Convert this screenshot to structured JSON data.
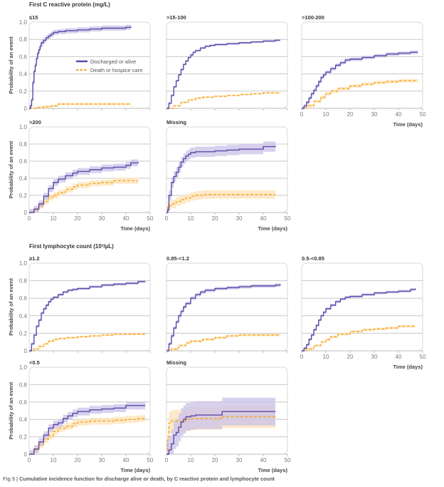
{
  "figure": {
    "caption_label": "Fig 5 | ",
    "caption_text": "Cumulative incidence function for discharge alive or death, by C reactive protein and lymphocyte count",
    "sections": [
      {
        "title": "First C reactive protein (mg/L)"
      },
      {
        "title": "First lymphocyte count (10³/µL)"
      }
    ]
  },
  "colors": {
    "discharged": "#5b4aa8",
    "discharged_band": "#c9c1e8",
    "death": "#f5a623",
    "death_band": "#fde3b8",
    "grid": "#c8c8c8",
    "frame": "#d8d8d8"
  },
  "chart_data": [
    {
      "type": "line",
      "section": 0,
      "title": "≤15",
      "xlabel": "Time (days)",
      "ylabel": "Probability of an event",
      "xlim": [
        0,
        50
      ],
      "ylim": [
        0,
        1.0
      ],
      "xticks": [
        0,
        10,
        20,
        30,
        40,
        50
      ],
      "yticks": [
        0,
        0.2,
        0.4,
        0.6,
        0.8,
        1.0
      ],
      "show_x_labels": false,
      "show_y_labels": true,
      "grid": true,
      "legend": {
        "position": "center-right",
        "entries": [
          "Discharged or alive",
          "Death or hospice care"
        ]
      },
      "series": [
        {
          "name": "Discharged or alive",
          "band": 0.03,
          "x": [
            0,
            0.5,
            1,
            1.5,
            2,
            2.5,
            3,
            3.5,
            4,
            4.5,
            5,
            6,
            7,
            8,
            9,
            10,
            12,
            15,
            20,
            25,
            30,
            35,
            40,
            42
          ],
          "y": [
            0,
            0.03,
            0.1,
            0.3,
            0.43,
            0.5,
            0.58,
            0.64,
            0.68,
            0.72,
            0.76,
            0.79,
            0.82,
            0.84,
            0.86,
            0.88,
            0.89,
            0.9,
            0.91,
            0.92,
            0.93,
            0.93,
            0.94,
            0.95
          ]
        },
        {
          "name": "Death or hospice care",
          "band": 0.015,
          "x": [
            0,
            3,
            6,
            9,
            12,
            20,
            30,
            42
          ],
          "y": [
            0,
            0.01,
            0.02,
            0.03,
            0.05,
            0.05,
            0.05,
            0.05
          ]
        }
      ]
    },
    {
      "type": "line",
      "section": 0,
      "title": ">15-100",
      "xlim": [
        0,
        50
      ],
      "ylim": [
        0,
        1.0
      ],
      "xticks": [
        0,
        10,
        20,
        30,
        40,
        50
      ],
      "yticks": [
        0,
        0.2,
        0.4,
        0.6,
        0.8,
        1.0
      ],
      "show_x_labels": false,
      "show_y_labels": false,
      "grid": true,
      "series": [
        {
          "name": "Discharged or alive",
          "band": 0.012,
          "x": [
            0,
            1,
            2,
            3,
            4,
            5,
            6,
            7,
            8,
            9,
            10,
            11,
            12,
            14,
            16,
            18,
            20,
            25,
            30,
            35,
            40,
            45,
            47
          ],
          "y": [
            0,
            0.06,
            0.15,
            0.25,
            0.32,
            0.39,
            0.45,
            0.51,
            0.55,
            0.59,
            0.62,
            0.65,
            0.67,
            0.7,
            0.72,
            0.73,
            0.74,
            0.75,
            0.76,
            0.77,
            0.78,
            0.79,
            0.79
          ]
        },
        {
          "name": "Death or hospice care",
          "band": 0.01,
          "x": [
            0,
            3,
            6,
            9,
            12,
            15,
            20,
            25,
            30,
            35,
            40,
            47
          ],
          "y": [
            0,
            0.03,
            0.07,
            0.1,
            0.12,
            0.13,
            0.14,
            0.15,
            0.16,
            0.17,
            0.18,
            0.18
          ]
        }
      ]
    },
    {
      "type": "line",
      "section": 0,
      "title": ">100-200",
      "xlabel": "Time (days)",
      "xlim": [
        0,
        50
      ],
      "ylim": [
        0,
        1.0
      ],
      "xticks": [
        0,
        10,
        20,
        30,
        40,
        50
      ],
      "yticks": [
        0,
        0.2,
        0.4,
        0.6,
        0.8,
        1.0
      ],
      "show_x_labels": true,
      "show_y_labels": false,
      "grid": true,
      "series": [
        {
          "name": "Discharged or alive",
          "band": 0.02,
          "x": [
            0,
            1,
            2,
            3,
            4,
            5,
            6,
            7,
            8,
            9,
            10,
            12,
            14,
            16,
            18,
            20,
            25,
            30,
            35,
            40,
            45,
            48
          ],
          "y": [
            0,
            0.03,
            0.07,
            0.12,
            0.17,
            0.21,
            0.26,
            0.31,
            0.36,
            0.39,
            0.42,
            0.46,
            0.5,
            0.53,
            0.56,
            0.57,
            0.59,
            0.61,
            0.63,
            0.64,
            0.65,
            0.65
          ]
        },
        {
          "name": "Death or hospice care",
          "band": 0.02,
          "x": [
            0,
            2,
            5,
            8,
            10,
            12,
            15,
            20,
            25,
            30,
            35,
            40,
            45,
            48
          ],
          "y": [
            0,
            0.03,
            0.08,
            0.13,
            0.17,
            0.2,
            0.23,
            0.26,
            0.28,
            0.3,
            0.31,
            0.32,
            0.32,
            0.32
          ]
        }
      ]
    },
    {
      "type": "line",
      "section": 0,
      "title": ">200",
      "xlabel": "Time (days)",
      "ylabel": "Probability of an event",
      "xlim": [
        0,
        50
      ],
      "ylim": [
        0,
        1.0
      ],
      "xticks": [
        0,
        10,
        20,
        30,
        40,
        50
      ],
      "yticks": [
        0,
        0.2,
        0.4,
        0.6,
        0.8,
        1.0
      ],
      "show_x_labels": true,
      "show_y_labels": true,
      "grid": true,
      "series": [
        {
          "name": "Discharged or alive",
          "band": 0.04,
          "x": [
            0,
            2,
            4,
            6,
            8,
            10,
            12,
            15,
            18,
            20,
            25,
            30,
            35,
            40,
            42,
            45
          ],
          "y": [
            0,
            0.04,
            0.1,
            0.19,
            0.28,
            0.35,
            0.39,
            0.43,
            0.46,
            0.48,
            0.5,
            0.52,
            0.53,
            0.55,
            0.58,
            0.59
          ]
        },
        {
          "name": "Death or hospice care",
          "band": 0.035,
          "x": [
            0,
            2,
            4,
            6,
            8,
            10,
            12,
            15,
            18,
            20,
            25,
            30,
            35,
            40,
            45
          ],
          "y": [
            0,
            0.03,
            0.08,
            0.13,
            0.18,
            0.2,
            0.23,
            0.27,
            0.3,
            0.32,
            0.34,
            0.35,
            0.37,
            0.37,
            0.37
          ]
        }
      ]
    },
    {
      "type": "line",
      "section": 0,
      "title": "Missing",
      "xlabel": "Time (days)",
      "xlim": [
        0,
        50
      ],
      "ylim": [
        0,
        1.0
      ],
      "xticks": [
        0,
        10,
        20,
        30,
        40,
        50
      ],
      "yticks": [
        0,
        0.2,
        0.4,
        0.6,
        0.8,
        1.0
      ],
      "show_x_labels": true,
      "show_y_labels": false,
      "grid": true,
      "series": [
        {
          "name": "Discharged or alive",
          "band": 0.06,
          "x": [
            0,
            0.5,
            1,
            2,
            3,
            4,
            5,
            6,
            7,
            8,
            9,
            10,
            12,
            15,
            20,
            25,
            30,
            35,
            38,
            40,
            45
          ],
          "y": [
            0,
            0.03,
            0.2,
            0.35,
            0.42,
            0.47,
            0.53,
            0.59,
            0.63,
            0.66,
            0.68,
            0.7,
            0.71,
            0.71,
            0.72,
            0.73,
            0.74,
            0.74,
            0.74,
            0.77,
            0.78
          ]
        },
        {
          "name": "Death or hospice care",
          "band": 0.05,
          "x": [
            0,
            0.5,
            1,
            2,
            4,
            6,
            8,
            10,
            12,
            15,
            20,
            30,
            45
          ],
          "y": [
            0,
            0.06,
            0.08,
            0.1,
            0.13,
            0.15,
            0.17,
            0.19,
            0.2,
            0.21,
            0.21,
            0.21,
            0.21
          ]
        }
      ]
    },
    {
      "type": "line",
      "section": 1,
      "title": "≥1.2",
      "ylabel": "Probability of an event",
      "xlim": [
        0,
        50
      ],
      "ylim": [
        0,
        1.0
      ],
      "xticks": [
        0,
        10,
        20,
        30,
        40,
        50
      ],
      "yticks": [
        0,
        0.2,
        0.4,
        0.6,
        0.8,
        1.0
      ],
      "show_x_labels": false,
      "show_y_labels": true,
      "grid": true,
      "series": [
        {
          "name": "Discharged or alive",
          "band": 0.015,
          "x": [
            0,
            1,
            2,
            3,
            4,
            5,
            6,
            7,
            8,
            9,
            10,
            12,
            14,
            16,
            18,
            20,
            25,
            30,
            35,
            40,
            45,
            48
          ],
          "y": [
            0,
            0.08,
            0.18,
            0.28,
            0.35,
            0.43,
            0.48,
            0.52,
            0.56,
            0.59,
            0.61,
            0.64,
            0.67,
            0.69,
            0.7,
            0.71,
            0.73,
            0.75,
            0.76,
            0.77,
            0.79,
            0.79
          ]
        },
        {
          "name": "Death or hospice care",
          "band": 0.012,
          "x": [
            0,
            2,
            4,
            6,
            8,
            10,
            12,
            15,
            20,
            25,
            30,
            35,
            40,
            48
          ],
          "y": [
            0,
            0.02,
            0.05,
            0.08,
            0.11,
            0.13,
            0.14,
            0.15,
            0.16,
            0.17,
            0.18,
            0.19,
            0.19,
            0.19
          ]
        }
      ]
    },
    {
      "type": "line",
      "section": 1,
      "title": "0.85-<1.2",
      "xlim": [
        0,
        50
      ],
      "ylim": [
        0,
        1.0
      ],
      "xticks": [
        0,
        10,
        20,
        30,
        40,
        50
      ],
      "yticks": [
        0,
        0.2,
        0.4,
        0.6,
        0.8,
        1.0
      ],
      "show_x_labels": false,
      "show_y_labels": false,
      "grid": true,
      "series": [
        {
          "name": "Discharged or alive",
          "band": 0.02,
          "x": [
            0,
            1,
            2,
            3,
            4,
            5,
            6,
            7,
            8,
            10,
            12,
            14,
            16,
            20,
            25,
            30,
            35,
            40,
            45,
            47
          ],
          "y": [
            0,
            0.08,
            0.17,
            0.26,
            0.33,
            0.4,
            0.45,
            0.5,
            0.54,
            0.6,
            0.64,
            0.67,
            0.69,
            0.71,
            0.72,
            0.73,
            0.74,
            0.74,
            0.75,
            0.76
          ]
        },
        {
          "name": "Death or hospice care",
          "band": 0.015,
          "x": [
            0,
            2,
            5,
            8,
            10,
            15,
            20,
            25,
            30,
            35,
            40,
            47
          ],
          "y": [
            0,
            0.02,
            0.06,
            0.09,
            0.11,
            0.13,
            0.15,
            0.17,
            0.18,
            0.18,
            0.18,
            0.18
          ]
        }
      ]
    },
    {
      "type": "line",
      "section": 1,
      "title": "0.5-<0.85",
      "xlabel": "Time (days)",
      "xlim": [
        0,
        50
      ],
      "ylim": [
        0,
        1.0
      ],
      "xticks": [
        0,
        10,
        20,
        30,
        40,
        50
      ],
      "yticks": [
        0,
        0.2,
        0.4,
        0.6,
        0.8,
        1.0
      ],
      "show_x_labels": true,
      "show_y_labels": false,
      "grid": true,
      "series": [
        {
          "name": "Discharged or alive",
          "band": 0.015,
          "x": [
            0,
            1,
            2,
            3,
            4,
            5,
            6,
            7,
            8,
            9,
            10,
            12,
            14,
            16,
            18,
            20,
            25,
            30,
            35,
            40,
            45,
            47
          ],
          "y": [
            0,
            0.03,
            0.07,
            0.13,
            0.18,
            0.24,
            0.29,
            0.35,
            0.4,
            0.44,
            0.48,
            0.52,
            0.56,
            0.59,
            0.61,
            0.62,
            0.64,
            0.66,
            0.67,
            0.68,
            0.7,
            0.71
          ]
        },
        {
          "name": "Death or hospice care",
          "band": 0.015,
          "x": [
            0,
            2,
            5,
            8,
            10,
            12,
            15,
            20,
            25,
            30,
            35,
            40,
            47
          ],
          "y": [
            0,
            0.02,
            0.06,
            0.1,
            0.13,
            0.16,
            0.19,
            0.22,
            0.24,
            0.25,
            0.26,
            0.28,
            0.28
          ]
        }
      ]
    },
    {
      "type": "line",
      "section": 1,
      "title": "<0.5",
      "xlabel": "Time (days)",
      "ylabel": "Probability of an event",
      "xlim": [
        0,
        50
      ],
      "ylim": [
        0,
        1.0
      ],
      "xticks": [
        0,
        10,
        20,
        30,
        40,
        50
      ],
      "yticks": [
        0,
        0.2,
        0.4,
        0.6,
        0.8,
        1.0
      ],
      "show_x_labels": true,
      "show_y_labels": true,
      "grid": true,
      "series": [
        {
          "name": "Discharged or alive",
          "band": 0.045,
          "x": [
            0,
            2,
            4,
            6,
            8,
            10,
            12,
            14,
            16,
            18,
            20,
            25,
            30,
            35,
            38,
            40,
            45,
            48
          ],
          "y": [
            0,
            0.06,
            0.14,
            0.22,
            0.3,
            0.34,
            0.36,
            0.41,
            0.44,
            0.47,
            0.49,
            0.51,
            0.52,
            0.53,
            0.53,
            0.56,
            0.56,
            0.56
          ]
        },
        {
          "name": "Death or hospice care",
          "band": 0.04,
          "x": [
            0,
            2,
            4,
            6,
            8,
            10,
            12,
            15,
            18,
            20,
            25,
            30,
            35,
            40,
            45,
            48
          ],
          "y": [
            0,
            0.05,
            0.11,
            0.17,
            0.21,
            0.26,
            0.3,
            0.32,
            0.35,
            0.37,
            0.38,
            0.38,
            0.39,
            0.4,
            0.41,
            0.41
          ]
        }
      ]
    },
    {
      "type": "line",
      "section": 1,
      "title": "Missing",
      "xlabel": "Time (days)",
      "xlim": [
        0,
        50
      ],
      "ylim": [
        0,
        1.0
      ],
      "xticks": [
        0,
        10,
        20,
        30,
        40,
        50
      ],
      "yticks": [
        0,
        0.2,
        0.4,
        0.6,
        0.8,
        1.0
      ],
      "show_x_labels": true,
      "show_y_labels": false,
      "grid": true,
      "series": [
        {
          "name": "Discharged or alive",
          "band": 0.16,
          "x": [
            0,
            1,
            2,
            3,
            4,
            5,
            6,
            7,
            8,
            10,
            12,
            15,
            20,
            23,
            30,
            40,
            45
          ],
          "y": [
            0,
            0.05,
            0.12,
            0.22,
            0.25,
            0.31,
            0.37,
            0.4,
            0.43,
            0.44,
            0.45,
            0.45,
            0.45,
            0.49,
            0.49,
            0.49,
            0.49
          ]
        },
        {
          "name": "Death or hospice care",
          "band": 0.13,
          "x": [
            0,
            0.5,
            1,
            2,
            5,
            8,
            10,
            15,
            20,
            23,
            30,
            45
          ],
          "y": [
            0,
            0.17,
            0.36,
            0.38,
            0.38,
            0.4,
            0.41,
            0.41,
            0.41,
            0.43,
            0.43,
            0.43
          ]
        }
      ]
    }
  ]
}
